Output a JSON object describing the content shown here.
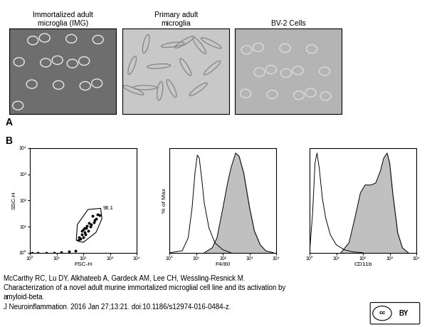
{
  "panel_a": {
    "label": "A",
    "images": [
      "Immortalized adult microglia (IMG)",
      "Primary adult microglia",
      "BV-2 Cells"
    ]
  },
  "panel_b_label": "B",
  "chart_data": [
    {
      "type": "scatter",
      "xlabel": "FSC-H",
      "ylabel": "SSC-H",
      "log": true,
      "color": "#000000",
      "marker": "o",
      "x": [
        1.2,
        2,
        4,
        8,
        15,
        30,
        50,
        65,
        70,
        80,
        90,
        100,
        110,
        120,
        90,
        100,
        130,
        150,
        180,
        200,
        250,
        300,
        160,
        220,
        350,
        400,
        140,
        110,
        260
      ],
      "y": [
        1.0,
        1.0,
        1.0,
        1.0,
        1.05,
        1.1,
        1.2,
        3,
        4,
        3.5,
        5,
        4,
        6,
        5,
        7,
        8,
        9,
        7,
        10,
        12,
        15,
        20,
        14,
        25,
        30,
        28,
        11,
        9,
        18
      ],
      "gate": {
        "label": "96.1",
        "x": [
          55,
          60,
          150,
          450,
          500,
          300,
          100
        ],
        "y": [
          3,
          12,
          45,
          50,
          20,
          6,
          2.5
        ]
      },
      "xlim": [
        1,
        10000
      ],
      "ylim": [
        1,
        10000
      ],
      "xticks": [
        {
          "value": 1,
          "label": "10⁰"
        },
        {
          "value": 10,
          "label": "10¹"
        },
        {
          "value": 100,
          "label": "10²"
        },
        {
          "value": 1000,
          "label": "10³"
        },
        {
          "value": 10000,
          "label": "10⁴"
        }
      ],
      "yticks": [
        {
          "value": 1,
          "label": "10⁰"
        },
        {
          "value": 10,
          "label": "10¹"
        },
        {
          "value": 100,
          "label": "10²"
        },
        {
          "value": 1000,
          "label": "10³"
        },
        {
          "value": 10000,
          "label": "10⁴"
        }
      ],
      "tick_labels": true
    },
    {
      "type": "line",
      "xlabel": "F4/80",
      "ylabel": "% of Max",
      "log": "x",
      "series": [
        {
          "type": "line",
          "color": "#000000",
          "x": [
            1,
            3,
            5,
            7,
            9,
            11,
            13,
            16,
            20,
            30,
            50,
            100,
            200
          ],
          "values": [
            0,
            2,
            15,
            45,
            80,
            98,
            95,
            75,
            50,
            25,
            10,
            3,
            0
          ]
        },
        {
          "type": "area",
          "color": "#c0c0c0",
          "x": [
            20,
            40,
            60,
            100,
            150,
            200,
            300,
            400,
            600,
            1000,
            1500,
            2500,
            4000,
            8000
          ],
          "values": [
            0,
            5,
            15,
            45,
            70,
            85,
            100,
            97,
            80,
            45,
            22,
            8,
            2,
            0
          ]
        }
      ],
      "xlim": [
        1,
        10000
      ],
      "ylim": [
        0,
        105
      ],
      "xticks": [
        {
          "value": 1,
          "label": "10⁰"
        },
        {
          "value": 10,
          "label": "10¹"
        },
        {
          "value": 100,
          "label": "10²"
        },
        {
          "value": 1000,
          "label": "10³"
        },
        {
          "value": 10000,
          "label": "10⁴"
        }
      ],
      "yticks": [],
      "tick_labels": "x"
    },
    {
      "type": "line",
      "xlabel": "CD11b",
      "log": "x",
      "series": [
        {
          "type": "line",
          "color": "#000000",
          "x": [
            1,
            1.3,
            1.6,
            1.9,
            2.3,
            3,
            4,
            6,
            10,
            20,
            40,
            100
          ],
          "values": [
            0,
            40,
            90,
            100,
            85,
            55,
            35,
            18,
            8,
            3,
            1,
            0
          ]
        },
        {
          "type": "area",
          "color": "#c0c0c0",
          "x": [
            15,
            30,
            50,
            80,
            120,
            200,
            300,
            450,
            600,
            800,
            1000,
            1300,
            2000,
            3000,
            5000
          ],
          "values": [
            0,
            10,
            35,
            60,
            68,
            68,
            70,
            82,
            95,
            100,
            90,
            60,
            20,
            5,
            0
          ]
        }
      ],
      "xlim": [
        1,
        10000
      ],
      "ylim": [
        0,
        105
      ],
      "xticks": [
        {
          "value": 1,
          "label": "10⁰"
        },
        {
          "value": 10,
          "label": "10¹"
        },
        {
          "value": 100,
          "label": "10²"
        },
        {
          "value": 1000,
          "label": "10³"
        },
        {
          "value": 10000,
          "label": "10⁴"
        }
      ],
      "yticks": [],
      "tick_labels": "x"
    }
  ],
  "citation": [
    "McCarthy RC, Lu DY, Alkhateeb A, Gardeck AM, Lee CH, Wessling-Resnick M.",
    "Characterization of a novel adult murine immortalized microglial cell line and its activation by",
    "amyloid-beta.",
    "J Neuroinflammation. 2016 Jan 27;13:21. doi:10.1186/s12974-016-0484-z."
  ],
  "license": [
    "cc",
    "BY"
  ]
}
